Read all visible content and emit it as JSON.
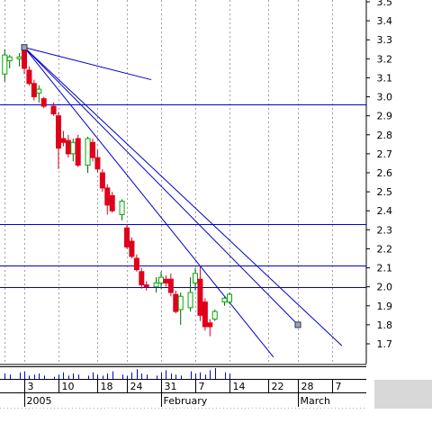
{
  "chart_data": {
    "type": "candlestick",
    "title": "",
    "xlabel": "",
    "ylabel": "",
    "ylim": [
      1.6,
      3.5
    ],
    "y_ticks": [
      1.7,
      1.8,
      1.9,
      2.0,
      2.1,
      2.2,
      2.3,
      2.4,
      2.5,
      2.6,
      2.7,
      2.8,
      2.9,
      3.0,
      3.1,
      3.2,
      3.3,
      3.4,
      3.5
    ],
    "x_ticks": [
      {
        "label": "3",
        "day": 3
      },
      {
        "label": "10",
        "day": 10
      },
      {
        "label": "18",
        "day": 18
      },
      {
        "label": "24",
        "day": 24
      },
      {
        "label": "31",
        "day": 31
      },
      {
        "label": "7",
        "day": 38
      },
      {
        "label": "14",
        "day": 45
      },
      {
        "label": "22",
        "day": 53
      },
      {
        "label": "28",
        "day": 59
      },
      {
        "label": "7",
        "day": 66
      }
    ],
    "month_labels": [
      {
        "label": "2005",
        "day": 3
      },
      {
        "label": "February",
        "day": 31
      },
      {
        "label": "March",
        "day": 59
      }
    ],
    "x_range_days": [
      -1,
      70
    ],
    "grid": "vertical dotted",
    "up_color": "#00aa00",
    "down_color": "#e0001a",
    "line_color": "#0000c8",
    "candles": [
      {
        "day": -1,
        "open": 3.12,
        "high": 3.25,
        "low": 3.08,
        "close": 3.22
      },
      {
        "day": 0,
        "open": 3.19,
        "high": 3.22,
        "low": 3.15,
        "close": 3.21
      },
      {
        "day": 2,
        "open": 3.2,
        "high": 3.23,
        "low": 3.16,
        "close": 3.21
      },
      {
        "day": 3,
        "open": 3.25,
        "high": 3.27,
        "low": 3.12,
        "close": 3.15
      },
      {
        "day": 4,
        "open": 3.14,
        "high": 3.16,
        "low": 3.06,
        "close": 3.07
      },
      {
        "day": 5,
        "open": 3.07,
        "high": 3.09,
        "low": 2.98,
        "close": 3.0
      },
      {
        "day": 6,
        "open": 3.02,
        "high": 3.06,
        "low": 2.97,
        "close": 3.04
      },
      {
        "day": 7,
        "open": 2.99,
        "high": 3.0,
        "low": 2.94,
        "close": 2.95
      },
      {
        "day": 9,
        "open": 2.95,
        "high": 2.97,
        "low": 2.9,
        "close": 2.91
      },
      {
        "day": 10,
        "open": 2.9,
        "high": 2.92,
        "low": 2.62,
        "close": 2.73
      },
      {
        "day": 11,
        "open": 2.78,
        "high": 2.82,
        "low": 2.74,
        "close": 2.76
      },
      {
        "day": 12,
        "open": 2.77,
        "high": 2.8,
        "low": 2.68,
        "close": 2.7
      },
      {
        "day": 13,
        "open": 2.7,
        "high": 2.78,
        "low": 2.66,
        "close": 2.76
      },
      {
        "day": 14,
        "open": 2.78,
        "high": 2.8,
        "low": 2.63,
        "close": 2.64
      },
      {
        "day": 16,
        "open": 2.64,
        "high": 2.79,
        "low": 2.6,
        "close": 2.78
      },
      {
        "day": 17,
        "open": 2.76,
        "high": 2.78,
        "low": 2.66,
        "close": 2.68
      },
      {
        "day": 18,
        "open": 2.68,
        "high": 2.72,
        "low": 2.6,
        "close": 2.62
      },
      {
        "day": 19,
        "open": 2.6,
        "high": 2.62,
        "low": 2.5,
        "close": 2.52
      },
      {
        "day": 20,
        "open": 2.52,
        "high": 2.54,
        "low": 2.38,
        "close": 2.43
      },
      {
        "day": 21,
        "open": 2.48,
        "high": 2.5,
        "low": 2.39,
        "close": 2.4
      },
      {
        "day": 23,
        "open": 2.38,
        "high": 2.46,
        "low": 2.35,
        "close": 2.45
      },
      {
        "day": 24,
        "open": 2.31,
        "high": 2.33,
        "low": 2.2,
        "close": 2.21
      },
      {
        "day": 25,
        "open": 2.24,
        "high": 2.26,
        "low": 2.15,
        "close": 2.16
      },
      {
        "day": 26,
        "open": 2.15,
        "high": 2.17,
        "low": 2.08,
        "close": 2.09
      },
      {
        "day": 27,
        "open": 2.08,
        "high": 2.1,
        "low": 1.99,
        "close": 2.01
      },
      {
        "day": 28,
        "open": 2.01,
        "high": 2.03,
        "low": 1.98,
        "close": 2.0
      },
      {
        "day": 30,
        "open": 2.0,
        "high": 2.05,
        "low": 1.97,
        "close": 2.02
      },
      {
        "day": 31,
        "open": 2.02,
        "high": 2.08,
        "low": 1.99,
        "close": 2.05
      },
      {
        "day": 32,
        "open": 2.04,
        "high": 2.06,
        "low": 2.0,
        "close": 2.02
      },
      {
        "day": 33,
        "open": 2.04,
        "high": 2.07,
        "low": 1.95,
        "close": 1.97
      },
      {
        "day": 34,
        "open": 1.96,
        "high": 1.98,
        "low": 1.86,
        "close": 1.87
      },
      {
        "day": 35,
        "open": 1.88,
        "high": 1.97,
        "low": 1.8,
        "close": 1.95
      },
      {
        "day": 37,
        "open": 1.89,
        "high": 2.05,
        "low": 1.87,
        "close": 1.97
      },
      {
        "day": 38,
        "open": 2.02,
        "high": 2.1,
        "low": 1.98,
        "close": 2.07
      },
      {
        "day": 39,
        "open": 2.04,
        "high": 2.11,
        "low": 1.82,
        "close": 1.85
      },
      {
        "day": 40,
        "open": 1.92,
        "high": 1.94,
        "low": 1.77,
        "close": 1.79
      },
      {
        "day": 41,
        "open": 1.81,
        "high": 1.83,
        "low": 1.74,
        "close": 1.79
      },
      {
        "day": 42,
        "open": 1.83,
        "high": 1.88,
        "low": 1.82,
        "close": 1.87
      },
      {
        "day": 44,
        "open": 1.92,
        "high": 1.95,
        "low": 1.9,
        "close": 1.94
      },
      {
        "day": 45,
        "open": 1.92,
        "high": 1.97,
        "low": 1.91,
        "close": 1.96
      }
    ],
    "volume": [
      5,
      4,
      6,
      7,
      3,
      4,
      5,
      3,
      2,
      4,
      6,
      3,
      5,
      4,
      3,
      6,
      4,
      3,
      5,
      7,
      4,
      3,
      6,
      9,
      5,
      4,
      3,
      6,
      8,
      5,
      4,
      3,
      7,
      5,
      6,
      4,
      8,
      10,
      6,
      5
    ],
    "horizontal_lines": [
      2.96,
      2.33,
      2.11,
      2.0
    ],
    "trend_lines": [
      {
        "x1": 3,
        "y1": 3.26,
        "x2": 29,
        "y2": 3.09
      },
      {
        "x1": 3,
        "y1": 3.26,
        "x2": 68,
        "y2": 1.69
      },
      {
        "x1": 3,
        "y1": 3.26,
        "x2": 59,
        "y2": 1.8
      },
      {
        "x1": 3,
        "y1": 3.26,
        "x2": 54,
        "y2": 1.63
      }
    ],
    "markers": [
      {
        "x": 3,
        "y": 3.26
      },
      {
        "x": 59,
        "y": 1.8
      }
    ]
  }
}
